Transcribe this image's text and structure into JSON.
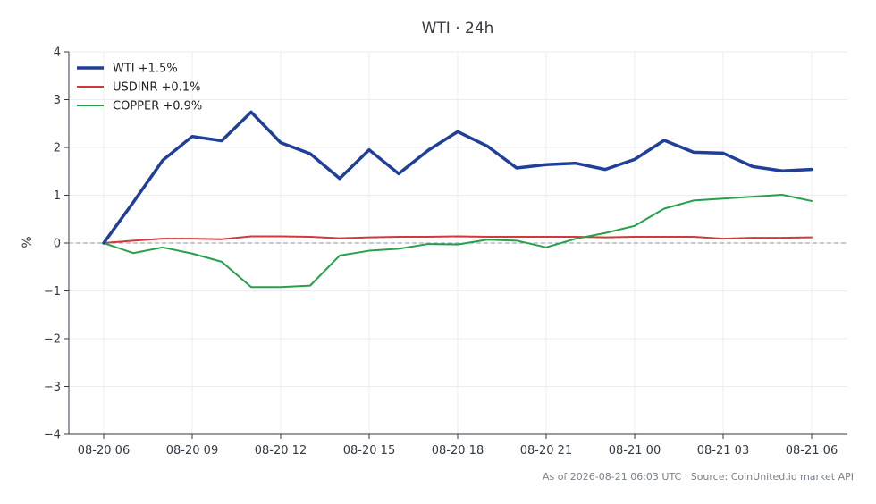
{
  "chart_data": {
    "type": "line",
    "title": "WTI · 24h",
    "xlabel": "",
    "ylabel": "%",
    "ylim": [
      -4,
      4
    ],
    "yticks": [
      4,
      3,
      2,
      1,
      0,
      -1,
      -2,
      -3,
      -4
    ],
    "ytick_labels": [
      "4",
      "3",
      "2",
      "1",
      "0",
      "−1",
      "−2",
      "−3",
      "−4"
    ],
    "x": [
      "08-20 06",
      "08-20 07",
      "08-20 08",
      "08-20 09",
      "08-20 10",
      "08-20 11",
      "08-20 12",
      "08-20 13",
      "08-20 14",
      "08-20 15",
      "08-20 16",
      "08-20 17",
      "08-20 18",
      "08-20 19",
      "08-20 20",
      "08-20 21",
      "08-20 22",
      "08-20 23",
      "08-21 00",
      "08-21 01",
      "08-21 02",
      "08-21 03",
      "08-21 04",
      "08-21 05",
      "08-21 06"
    ],
    "xtick_labels": [
      "08-20 06",
      "08-20 09",
      "08-20 12",
      "08-20 15",
      "08-20 18",
      "08-20 21",
      "08-21 00",
      "08-21 03",
      "08-21 06"
    ],
    "series": [
      {
        "name": "WTI +1.5%",
        "color": "#1f3f99",
        "line_weight": "thick",
        "values": [
          0,
          0.85,
          1.73,
          2.23,
          2.14,
          2.74,
          2.1,
          1.87,
          1.35,
          1.95,
          1.45,
          1.94,
          2.33,
          2.03,
          1.57,
          1.64,
          1.67,
          1.54,
          1.75,
          2.15,
          1.9,
          1.88,
          1.6,
          1.51,
          1.54
        ]
      },
      {
        "name": "USDINR +0.1%",
        "color": "#d03a3a",
        "line_weight": "normal",
        "values": [
          0,
          0.05,
          0.09,
          0.09,
          0.08,
          0.14,
          0.14,
          0.13,
          0.1,
          0.12,
          0.13,
          0.13,
          0.14,
          0.13,
          0.13,
          0.13,
          0.13,
          0.12,
          0.13,
          0.13,
          0.13,
          0.09,
          0.11,
          0.11,
          0.12
        ]
      },
      {
        "name": "COPPER +0.9%",
        "color": "#26a04a",
        "line_weight": "normal",
        "values": [
          0,
          -0.21,
          -0.09,
          -0.22,
          -0.39,
          -0.92,
          -0.92,
          -0.89,
          -0.26,
          -0.16,
          -0.12,
          -0.02,
          -0.03,
          0.07,
          0.05,
          -0.09,
          0.09,
          0.21,
          0.36,
          0.72,
          0.89,
          0.93,
          0.97,
          1.01,
          0.88
        ]
      }
    ],
    "reference_line": {
      "y": 0,
      "style": "dashed",
      "color": "#8a9aaa"
    },
    "grid": true,
    "legend_position": "top-left",
    "footer": "As of 2026-08-21 06:03 UTC · Source: CoinUnited.io market API"
  }
}
